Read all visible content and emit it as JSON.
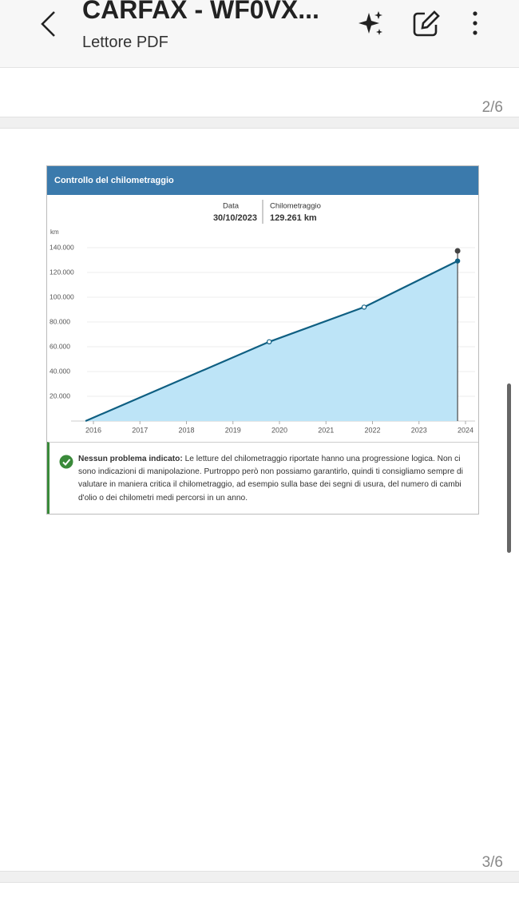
{
  "header": {
    "title": "CARFAX - WF0VX...",
    "subtitle": "Lettore PDF"
  },
  "pages": {
    "current": "2/6",
    "next": "3/6"
  },
  "chart_data": {
    "type": "line",
    "title": "Controllo del chilometraggio",
    "y_unit": "km",
    "x": [
      2015.83,
      2019.78,
      2021.82,
      2023.83
    ],
    "values": [
      0,
      64000,
      92000,
      129261
    ],
    "color": "#0f5f82",
    "fill": "#bde4f7",
    "xlim": [
      2015.7,
      2024.05
    ],
    "xticks": [
      2016,
      2017,
      2018,
      2019,
      2020,
      2021,
      2022,
      2023,
      2024
    ],
    "ylim": [
      0,
      143000
    ],
    "yticks": [
      {
        "value": 20000,
        "label": "20.000"
      },
      {
        "value": 40000,
        "label": "40.000"
      },
      {
        "value": 60000,
        "label": "60.000"
      },
      {
        "value": 80000,
        "label": "80.000"
      },
      {
        "value": 100000,
        "label": "100.000"
      },
      {
        "value": 120000,
        "label": "120.000"
      },
      {
        "value": 140000,
        "label": "140.000"
      }
    ],
    "grid": true,
    "tooltip": {
      "date_label": "Data",
      "date": "30/10/2023",
      "km_label": "Chilometraggio",
      "km": "129.261 km"
    }
  },
  "note": {
    "heading": "Nessun problema indicato:",
    "text": "Le letture del chilometraggio riportate hanno una progressione logica. Non ci sono indicazioni di manipolazione. Purtroppo però non possiamo garantirlo, quindi ti consigliamo sempre di valutare in maniera critica il chilometraggio, ad esempio sulla base dei segni di usura, del numero di cambi d'olio o dei chilometri medi percorsi in un anno."
  }
}
